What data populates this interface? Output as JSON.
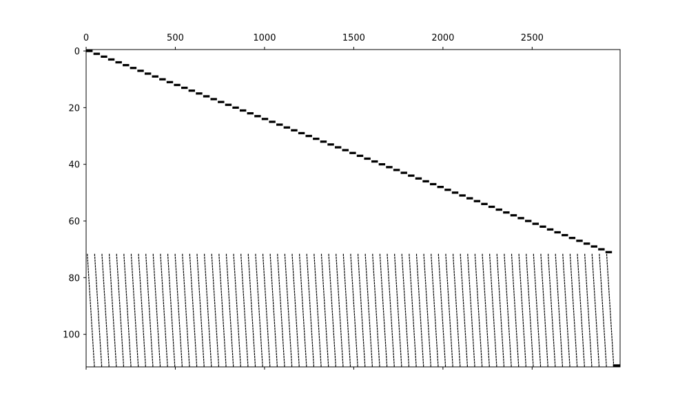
{
  "chart_data": {
    "type": "spy",
    "title": "",
    "xlabel": "",
    "ylabel": "",
    "n_rows": 112,
    "n_cols": 2993,
    "xlim": [
      0,
      2993
    ],
    "ylim": [
      112,
      0
    ],
    "x_ticks": [
      0,
      500,
      1000,
      1500,
      2000,
      2500
    ],
    "y_ticks": [
      0,
      20,
      40,
      60,
      80,
      100
    ],
    "x_tick_labels": [
      "0",
      "500",
      "1000",
      "1500",
      "2000",
      "2500"
    ],
    "y_tick_labels": [
      "0",
      "20",
      "40",
      "60",
      "80",
      "100"
    ],
    "x_axis_position": "top",
    "grid": false,
    "marker_color": "#000000",
    "diagonal_blocks": {
      "rows": [
        0,
        71
      ],
      "block_count": 72,
      "block_width": 41,
      "start_col": 0
    },
    "constraint_rows": {
      "rows": [
        72,
        111
      ],
      "block_count": 72,
      "block_width": 41,
      "description_pattern": "one nonzero per diagonal block; column offset within block increases by 1 per row"
    },
    "last_row_extra_nonzeros": {
      "row": 111,
      "cols": [
        2953,
        2992
      ]
    }
  }
}
